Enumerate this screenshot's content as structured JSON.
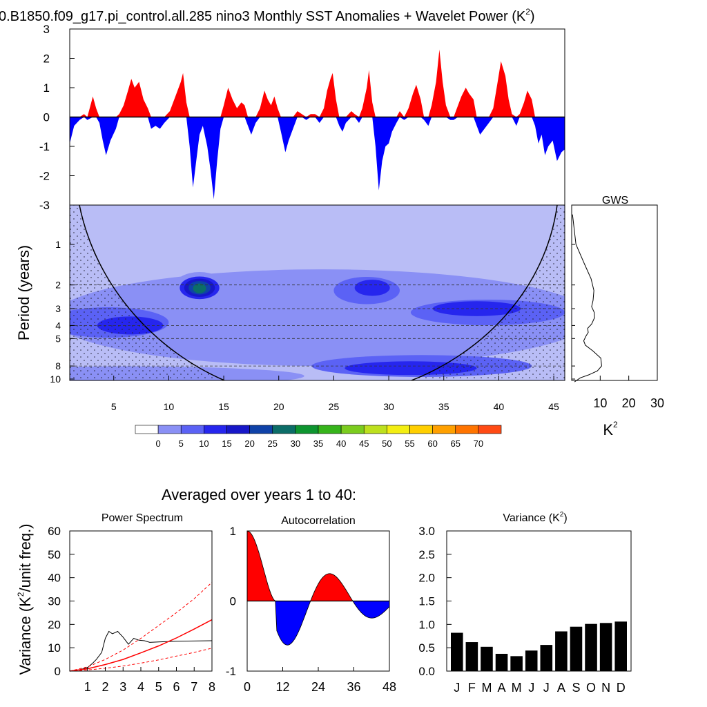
{
  "title": "0.B1850.f09_g17.pi_control.all.285 nino3 Monthly SST Anomalies + Wavelet Power (K",
  "title_sup": "2",
  "title_close": ")",
  "colors": {
    "positive": "#ff0000",
    "negative": "#0000ff",
    "black": "#000000"
  },
  "chart_data": [
    {
      "id": "sst_anomaly",
      "type": "area",
      "yticks": [
        "3",
        "2",
        "1",
        "0",
        "-1",
        "-2",
        "-3"
      ],
      "ylim": [
        -3,
        3
      ],
      "xlim": [
        1,
        46
      ],
      "series": [
        {
          "values": [
            [
              1,
              -0.9
            ],
            [
              1.4,
              -0.3
            ],
            [
              1.9,
              -0.1
            ],
            [
              2.3,
              0.1
            ],
            [
              2.6,
              -0.1
            ],
            [
              3.1,
              0.7
            ],
            [
              3.4,
              0.3
            ],
            [
              3.7,
              -0.2
            ],
            [
              4,
              -0.8
            ],
            [
              4.3,
              -1.3
            ],
            [
              4.7,
              -0.8
            ],
            [
              5.2,
              -0.4
            ],
            [
              5.5,
              0.1
            ],
            [
              5.9,
              0.4
            ],
            [
              6.3,
              0.9
            ],
            [
              6.6,
              1.3
            ],
            [
              6.9,
              1.0
            ],
            [
              7.3,
              1.2
            ],
            [
              7.7,
              0.6
            ],
            [
              8.1,
              0.3
            ],
            [
              8.4,
              -0.4
            ],
            [
              8.8,
              -0.3
            ],
            [
              9.2,
              -0.4
            ],
            [
              9.6,
              -0.2
            ],
            [
              10.1,
              0.2
            ],
            [
              10.6,
              0.7
            ],
            [
              11.1,
              1.2
            ],
            [
              11.3,
              1.5
            ],
            [
              11.6,
              0.5
            ],
            [
              11.9,
              -1.0
            ],
            [
              12.2,
              -2.4
            ],
            [
              12.5,
              -1.5
            ],
            [
              12.8,
              -0.6
            ],
            [
              13.1,
              -0.3
            ],
            [
              13.5,
              -1.0
            ],
            [
              13.8,
              -1.8
            ],
            [
              14.1,
              -2.8
            ],
            [
              14.4,
              -1.5
            ],
            [
              14.7,
              -0.4
            ],
            [
              15,
              0.4
            ],
            [
              15.4,
              1.0
            ],
            [
              15.8,
              0.6
            ],
            [
              16.2,
              0.3
            ],
            [
              16.6,
              0.5
            ],
            [
              16.9,
              0.4
            ],
            [
              17.2,
              -0.3
            ],
            [
              17.5,
              -0.6
            ],
            [
              17.9,
              -0.2
            ],
            [
              18.3,
              0.3
            ],
            [
              18.7,
              0.9
            ],
            [
              19,
              0.6
            ],
            [
              19.3,
              0.4
            ],
            [
              19.6,
              0.7
            ],
            [
              19.9,
              0.3
            ],
            [
              20.2,
              -0.5
            ],
            [
              20.6,
              -1.2
            ],
            [
              20.9,
              -0.8
            ],
            [
              21.3,
              -0.4
            ],
            [
              21.7,
              0.2
            ],
            [
              22.1,
              0.1
            ],
            [
              22.5,
              -0.1
            ],
            [
              22.9,
              0.1
            ],
            [
              23.3,
              0.1
            ],
            [
              23.7,
              -0.2
            ],
            [
              24.1,
              0.3
            ],
            [
              24.4,
              0.9
            ],
            [
              24.7,
              1.3
            ],
            [
              24.9,
              1.5
            ],
            [
              25.2,
              0.6
            ],
            [
              25.5,
              -0.3
            ],
            [
              25.8,
              -0.5
            ],
            [
              26.1,
              -0.2
            ],
            [
              26.6,
              0.2
            ],
            [
              26.9,
              0.1
            ],
            [
              27.3,
              -0.2
            ],
            [
              27.6,
              0.3
            ],
            [
              28,
              1.0
            ],
            [
              28.2,
              1.6
            ],
            [
              28.5,
              0.5
            ],
            [
              28.8,
              -1.0
            ],
            [
              29.1,
              -2.5
            ],
            [
              29.4,
              -1.5
            ],
            [
              29.7,
              -1.0
            ],
            [
              30,
              -0.9
            ],
            [
              30.3,
              -0.5
            ],
            [
              30.7,
              -0.2
            ],
            [
              31,
              0.2
            ],
            [
              31.4,
              -0.1
            ],
            [
              31.8,
              0.3
            ],
            [
              32.2,
              0.8
            ],
            [
              32.5,
              1.1
            ],
            [
              32.9,
              0.6
            ],
            [
              33.2,
              -0.1
            ],
            [
              33.6,
              -0.3
            ],
            [
              33.9,
              0.4
            ],
            [
              34.3,
              1.2
            ],
            [
              34.6,
              2.3
            ],
            [
              34.9,
              1.2
            ],
            [
              35.2,
              0.4
            ],
            [
              35.6,
              -0.1
            ],
            [
              35.9,
              -0.1
            ],
            [
              36.3,
              0.4
            ],
            [
              36.6,
              0.7
            ],
            [
              37,
              1.0
            ],
            [
              37.3,
              0.8
            ],
            [
              37.7,
              0.6
            ],
            [
              38,
              -0.3
            ],
            [
              38.3,
              -0.6
            ],
            [
              38.7,
              -0.4
            ],
            [
              39.1,
              -0.2
            ],
            [
              39.5,
              0.3
            ],
            [
              39.9,
              1.2
            ],
            [
              40.2,
              1.9
            ],
            [
              40.6,
              1.4
            ],
            [
              40.9,
              0.6
            ],
            [
              41.2,
              0.1
            ],
            [
              41.6,
              -0.3
            ],
            [
              41.9,
              0.1
            ],
            [
              42.3,
              0.5
            ],
            [
              42.6,
              0.9
            ],
            [
              43,
              0.6
            ],
            [
              43.3,
              -0.3
            ],
            [
              43.6,
              -0.9
            ],
            [
              43.9,
              -0.6
            ],
            [
              44.2,
              -1.3
            ],
            [
              44.5,
              -1.0
            ],
            [
              44.9,
              -0.8
            ],
            [
              45.3,
              -1.5
            ],
            [
              45.7,
              -1.2
            ],
            [
              46,
              -1.1
            ]
          ]
        }
      ]
    },
    {
      "id": "wavelet_power",
      "type": "heatmap",
      "ylabel": "Period (years)",
      "yticks": [
        "1",
        "2",
        "3",
        "4",
        "5",
        "8",
        "10"
      ],
      "ytick_values": [
        1,
        2,
        3,
        4,
        5,
        8,
        10
      ],
      "xticks": [
        "5",
        "10",
        "15",
        "20",
        "25",
        "30",
        "35",
        "40",
        "45"
      ],
      "xtick_values": [
        5,
        10,
        15,
        20,
        25,
        30,
        35,
        40,
        45
      ],
      "xlim": [
        1,
        46
      ],
      "colorbar": {
        "labels": [
          "0",
          "5",
          "10",
          "15",
          "20",
          "25",
          "30",
          "35",
          "40",
          "45",
          "50",
          "55",
          "60",
          "65",
          "70"
        ],
        "colors": [
          "#ffffff",
          "#b9bdf6",
          "#8a90f5",
          "#5b62f5",
          "#2626ee",
          "#1717c8",
          "#0f42a8",
          "#0c6d68",
          "#0e9530",
          "#36b41b",
          "#7bcc1e",
          "#bde01e",
          "#f3ee12",
          "#ffcf00",
          "#ffa000",
          "#ff7400",
          "#ff4a14",
          "#ff1414"
        ]
      },
      "blobs": [
        {
          "x": 12.8,
          "p": 2.05,
          "rx": 2.3,
          "rp": 0.45,
          "level": 2
        },
        {
          "x": 12.8,
          "p": 2.1,
          "rx": 1.8,
          "rp": 0.33,
          "level": 4
        },
        {
          "x": 12.8,
          "p": 2.1,
          "rx": 1.4,
          "rp": 0.24,
          "level": 5
        },
        {
          "x": 12.8,
          "p": 2.1,
          "rx": 1.0,
          "rp": 0.15,
          "level": 6
        },
        {
          "x": 12.8,
          "p": 2.12,
          "rx": 0.6,
          "rp": 0.08,
          "level": 7
        },
        {
          "x": 4.5,
          "p": 3.8,
          "rx": 5.5,
          "rp": 0.9,
          "level": 3
        },
        {
          "x": 6.5,
          "p": 4.0,
          "rx": 3.0,
          "rp": 0.45,
          "level": 4
        },
        {
          "x": 28,
          "p": 2.2,
          "rx": 3.0,
          "rp": 0.45,
          "level": 3
        },
        {
          "x": 28.5,
          "p": 2.1,
          "rx": 1.6,
          "rp": 0.2,
          "level": 4
        },
        {
          "x": 39,
          "p": 3.2,
          "rx": 7.0,
          "rp": 0.6,
          "level": 3
        },
        {
          "x": 38,
          "p": 3.0,
          "rx": 4.0,
          "rp": 0.25,
          "level": 4
        },
        {
          "x": 33,
          "p": 8.0,
          "rx": 10.0,
          "rp": 1.2,
          "level": 3
        },
        {
          "x": 32,
          "p": 8.3,
          "rx": 6.0,
          "rp": 0.6,
          "level": 4
        }
      ]
    },
    {
      "id": "gws",
      "type": "line",
      "title": "GWS",
      "xticks": [
        "10",
        "20",
        "30"
      ],
      "xtick_values": [
        10,
        20,
        30
      ],
      "xlim": [
        0,
        30
      ],
      "xlabel": "K",
      "xlabel_sup": "2",
      "x": [
        0.3,
        1.5,
        4.5,
        6.8,
        7.8,
        7.5,
        7.0,
        7.9,
        8.0,
        7.0,
        5.6,
        5.8,
        5.0,
        4.2,
        4.8,
        7.5,
        10.2,
        10.5,
        9.0,
        6.0,
        3.0,
        1.0
      ],
      "y": [
        0.6,
        1.0,
        1.4,
        1.8,
        2.2,
        2.6,
        2.9,
        3.2,
        3.5,
        3.9,
        4.2,
        4.5,
        4.8,
        5.2,
        5.6,
        6.2,
        7.0,
        8.0,
        8.7,
        9.3,
        9.8,
        10.5
      ]
    },
    {
      "id": "power_spectrum",
      "type": "line",
      "title": "Power Spectrum",
      "ylabel_parts": [
        "Variance (K",
        "2",
        "/unit freq.)"
      ],
      "xticks": [
        "1",
        "2",
        "3",
        "4",
        "5",
        "6",
        "7",
        "8"
      ],
      "xtick_values": [
        1,
        2,
        3,
        4,
        5,
        6,
        7,
        8
      ],
      "yticks": [
        "0",
        "10",
        "20",
        "30",
        "40",
        "50",
        "60"
      ],
      "ytick_values": [
        0,
        10,
        20,
        30,
        40,
        50,
        60
      ],
      "xlim": [
        0,
        8
      ],
      "ylim": [
        0,
        60
      ],
      "series": [
        {
          "style": "black",
          "x": [
            0,
            0.5,
            1,
            1.3,
            1.5,
            1.8,
            2.0,
            2.2,
            2.4,
            2.7,
            3.0,
            3.3,
            3.6,
            3.9,
            4.2,
            4.5,
            5,
            6,
            7,
            8
          ],
          "y": [
            0,
            0.5,
            1.5,
            3.5,
            5,
            8,
            14,
            17,
            16,
            17,
            14.5,
            11.5,
            14,
            13.2,
            13,
            12.3,
            12.5,
            12.8,
            12.9,
            13
          ]
        },
        {
          "style": "red",
          "x": [
            0,
            1,
            2,
            3,
            4,
            5,
            6,
            7,
            8
          ],
          "y": [
            0,
            1,
            2.8,
            5,
            7.8,
            10.8,
            14.2,
            18,
            22
          ]
        },
        {
          "style": "red-dashed",
          "x": [
            0,
            1,
            2,
            3,
            4,
            5,
            6,
            7,
            8
          ],
          "y": [
            0,
            1.8,
            5,
            9,
            14,
            19.5,
            25,
            31,
            38
          ]
        },
        {
          "style": "red-dashed",
          "x": [
            0,
            1,
            2,
            3,
            4,
            5,
            6,
            7,
            8
          ],
          "y": [
            0,
            0.5,
            1.2,
            2.2,
            3.4,
            4.8,
            6.4,
            8,
            9.8
          ]
        }
      ]
    },
    {
      "id": "autocorrelation",
      "type": "area",
      "title": "Autocorrelation",
      "xticks": [
        "0",
        "12",
        "24",
        "36",
        "48"
      ],
      "xtick_values": [
        0,
        12,
        24,
        36,
        48
      ],
      "yticks": [
        "1",
        "0",
        "-1"
      ],
      "ytick_values": [
        1,
        0,
        -1
      ],
      "xlim": [
        0,
        48
      ],
      "ylim": [
        -1,
        1
      ]
    },
    {
      "id": "variance",
      "type": "bar",
      "title": "Variance (K",
      "title_sup": "2",
      "title_close": ")",
      "categories": [
        "J",
        "F",
        "M",
        "A",
        "M",
        "J",
        "J",
        "A",
        "S",
        "O",
        "N",
        "D"
      ],
      "values": [
        0.82,
        0.62,
        0.52,
        0.37,
        0.32,
        0.44,
        0.56,
        0.85,
        0.95,
        1.01,
        1.03,
        1.06
      ],
      "yticks": [
        "0.0",
        "0.5",
        "1.0",
        "1.5",
        "2.0",
        "2.5",
        "3.0"
      ],
      "ytick_values": [
        0,
        0.5,
        1.0,
        1.5,
        2.0,
        2.5,
        3.0
      ],
      "ylim": [
        0,
        3.0
      ]
    }
  ],
  "subtitle": "Averaged over years 1 to 40:"
}
